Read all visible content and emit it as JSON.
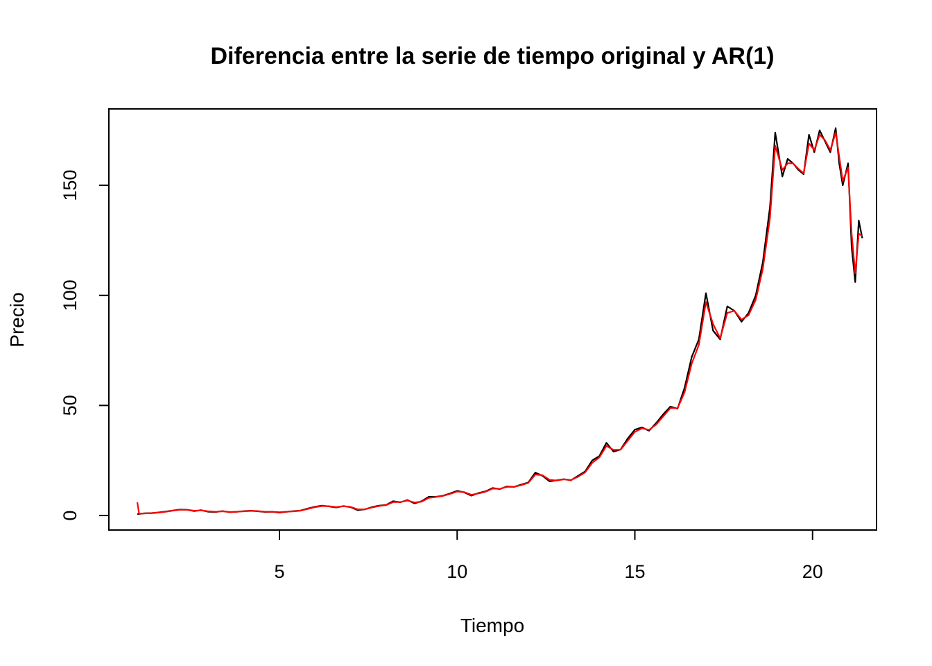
{
  "chart_data": {
    "type": "line",
    "title": "Diferencia entre la serie de tiempo original y AR(1)",
    "xlabel": "Tiempo",
    "ylabel": "Precio",
    "xlim": [
      0.2,
      21.8
    ],
    "ylim": [
      -6.6,
      184.7
    ],
    "x_ticks": [
      5,
      10,
      15,
      20
    ],
    "y_ticks": [
      0,
      50,
      100,
      150
    ],
    "grid": false,
    "legend": "none",
    "series": [
      {
        "color": "#000000",
        "points": [
          [
            1.0,
            0.6
          ],
          [
            1.2,
            1.0
          ],
          [
            1.4,
            1.1
          ],
          [
            1.6,
            1.4
          ],
          [
            1.8,
            1.8
          ],
          [
            2.0,
            2.3
          ],
          [
            2.2,
            2.7
          ],
          [
            2.4,
            2.6
          ],
          [
            2.6,
            2.0
          ],
          [
            2.8,
            2.4
          ],
          [
            3.0,
            1.7
          ],
          [
            3.2,
            1.6
          ],
          [
            3.4,
            2.0
          ],
          [
            3.6,
            1.5
          ],
          [
            3.8,
            1.7
          ],
          [
            4.0,
            2.0
          ],
          [
            4.2,
            2.2
          ],
          [
            4.4,
            1.9
          ],
          [
            4.6,
            1.6
          ],
          [
            4.8,
            1.7
          ],
          [
            5.0,
            1.3
          ],
          [
            5.2,
            1.7
          ],
          [
            5.4,
            2.0
          ],
          [
            5.6,
            2.3
          ],
          [
            5.8,
            3.2
          ],
          [
            6.0,
            4.0
          ],
          [
            6.2,
            4.5
          ],
          [
            6.4,
            4.1
          ],
          [
            6.6,
            3.6
          ],
          [
            6.8,
            4.3
          ],
          [
            7.0,
            3.8
          ],
          [
            7.2,
            2.4
          ],
          [
            7.4,
            2.8
          ],
          [
            7.6,
            3.8
          ],
          [
            7.8,
            4.5
          ],
          [
            8.0,
            4.8
          ],
          [
            8.2,
            6.5
          ],
          [
            8.4,
            6.0
          ],
          [
            8.6,
            7.0
          ],
          [
            8.8,
            5.5
          ],
          [
            9.0,
            6.5
          ],
          [
            9.2,
            8.5
          ],
          [
            9.4,
            8.5
          ],
          [
            9.6,
            9.0
          ],
          [
            9.8,
            10.0
          ],
          [
            10.0,
            11.2
          ],
          [
            10.2,
            10.5
          ],
          [
            10.4,
            9.0
          ],
          [
            10.6,
            10.2
          ],
          [
            10.8,
            11.0
          ],
          [
            11.0,
            12.5
          ],
          [
            11.2,
            12.0
          ],
          [
            11.4,
            13.2
          ],
          [
            11.6,
            13.0
          ],
          [
            11.8,
            14.0
          ],
          [
            12.0,
            15.0
          ],
          [
            12.2,
            19.5
          ],
          [
            12.4,
            18.0
          ],
          [
            12.6,
            15.5
          ],
          [
            12.8,
            16.0
          ],
          [
            13.0,
            16.5
          ],
          [
            13.2,
            16.0
          ],
          [
            13.4,
            18.0
          ],
          [
            13.6,
            20.0
          ],
          [
            13.8,
            25.0
          ],
          [
            14.0,
            27.0
          ],
          [
            14.2,
            33.0
          ],
          [
            14.4,
            29.0
          ],
          [
            14.6,
            30.0
          ],
          [
            14.8,
            35.0
          ],
          [
            15.0,
            39.0
          ],
          [
            15.2,
            40.0
          ],
          [
            15.4,
            38.5
          ],
          [
            15.6,
            42.0
          ],
          [
            15.8,
            46.0
          ],
          [
            16.0,
            49.5
          ],
          [
            16.2,
            48.5
          ],
          [
            16.4,
            58.0
          ],
          [
            16.6,
            72.0
          ],
          [
            16.8,
            80.0
          ],
          [
            17.0,
            101.0
          ],
          [
            17.2,
            84.0
          ],
          [
            17.4,
            80.0
          ],
          [
            17.6,
            95.0
          ],
          [
            17.8,
            93.0
          ],
          [
            18.0,
            88.0
          ],
          [
            18.2,
            92.0
          ],
          [
            18.4,
            100.0
          ],
          [
            18.6,
            115.0
          ],
          [
            18.8,
            140.0
          ],
          [
            18.95,
            174.0
          ],
          [
            19.15,
            154.0
          ],
          [
            19.3,
            162.0
          ],
          [
            19.45,
            160.0
          ],
          [
            19.6,
            157.0
          ],
          [
            19.75,
            155.0
          ],
          [
            19.9,
            173.0
          ],
          [
            20.05,
            165.0
          ],
          [
            20.2,
            175.0
          ],
          [
            20.35,
            170.0
          ],
          [
            20.5,
            165.0
          ],
          [
            20.65,
            176.0
          ],
          [
            20.75,
            160.0
          ],
          [
            20.85,
            150.0
          ],
          [
            21.0,
            160.0
          ],
          [
            21.1,
            122.0
          ],
          [
            21.2,
            106.0
          ],
          [
            21.3,
            134.0
          ],
          [
            21.4,
            126.0
          ]
        ]
      },
      {
        "color": "#ff0000",
        "points": [
          [
            1.0,
            6.0
          ],
          [
            1.05,
            0.8
          ],
          [
            1.2,
            0.9
          ],
          [
            1.4,
            1.1
          ],
          [
            1.6,
            1.3
          ],
          [
            1.8,
            1.7
          ],
          [
            2.0,
            2.2
          ],
          [
            2.2,
            2.6
          ],
          [
            2.4,
            2.6
          ],
          [
            2.6,
            2.2
          ],
          [
            2.8,
            2.3
          ],
          [
            3.0,
            1.9
          ],
          [
            3.2,
            1.7
          ],
          [
            3.4,
            1.9
          ],
          [
            3.6,
            1.6
          ],
          [
            3.8,
            1.7
          ],
          [
            4.0,
            1.9
          ],
          [
            4.2,
            2.1
          ],
          [
            4.4,
            2.0
          ],
          [
            4.6,
            1.7
          ],
          [
            4.8,
            1.7
          ],
          [
            5.0,
            1.5
          ],
          [
            5.2,
            1.7
          ],
          [
            5.4,
            1.9
          ],
          [
            5.6,
            2.2
          ],
          [
            5.8,
            3.0
          ],
          [
            6.0,
            3.8
          ],
          [
            6.2,
            4.3
          ],
          [
            6.4,
            4.2
          ],
          [
            6.6,
            3.8
          ],
          [
            6.8,
            4.2
          ],
          [
            7.0,
            3.9
          ],
          [
            7.2,
            2.8
          ],
          [
            7.4,
            2.8
          ],
          [
            7.6,
            3.6
          ],
          [
            7.8,
            4.3
          ],
          [
            8.0,
            4.7
          ],
          [
            8.2,
            6.1
          ],
          [
            8.4,
            6.1
          ],
          [
            8.6,
            6.8
          ],
          [
            8.8,
            5.9
          ],
          [
            9.0,
            6.3
          ],
          [
            9.2,
            8.0
          ],
          [
            9.4,
            8.4
          ],
          [
            9.6,
            8.9
          ],
          [
            9.8,
            9.8
          ],
          [
            10.0,
            10.9
          ],
          [
            10.2,
            10.6
          ],
          [
            10.4,
            9.4
          ],
          [
            10.6,
            10.0
          ],
          [
            10.8,
            10.8
          ],
          [
            11.0,
            12.2
          ],
          [
            11.2,
            12.1
          ],
          [
            11.4,
            13.0
          ],
          [
            11.6,
            13.0
          ],
          [
            11.8,
            13.8
          ],
          [
            12.0,
            14.8
          ],
          [
            12.2,
            18.6
          ],
          [
            12.4,
            18.3
          ],
          [
            12.6,
            16.2
          ],
          [
            12.8,
            15.9
          ],
          [
            13.0,
            16.4
          ],
          [
            13.2,
            16.1
          ],
          [
            13.4,
            17.6
          ],
          [
            13.6,
            19.6
          ],
          [
            13.8,
            23.9
          ],
          [
            14.0,
            26.4
          ],
          [
            14.2,
            31.6
          ],
          [
            14.4,
            29.8
          ],
          [
            14.6,
            29.9
          ],
          [
            14.8,
            34.0
          ],
          [
            15.0,
            38.0
          ],
          [
            15.2,
            39.6
          ],
          [
            15.4,
            38.9
          ],
          [
            15.6,
            41.3
          ],
          [
            15.8,
            45.1
          ],
          [
            16.0,
            48.8
          ],
          [
            16.2,
            48.7
          ],
          [
            16.4,
            56.0
          ],
          [
            16.6,
            69.0
          ],
          [
            16.8,
            77.5
          ],
          [
            17.0,
            97.0
          ],
          [
            17.2,
            87.0
          ],
          [
            17.4,
            80.5
          ],
          [
            17.6,
            92.0
          ],
          [
            17.8,
            93.0
          ],
          [
            18.0,
            89.0
          ],
          [
            18.2,
            91.0
          ],
          [
            18.4,
            98.0
          ],
          [
            18.6,
            112.0
          ],
          [
            18.8,
            135.0
          ],
          [
            18.95,
            168.0
          ],
          [
            19.15,
            157.0
          ],
          [
            19.3,
            160.0
          ],
          [
            19.45,
            160.0
          ],
          [
            19.6,
            157.5
          ],
          [
            19.75,
            155.5
          ],
          [
            19.9,
            169.0
          ],
          [
            20.05,
            166.0
          ],
          [
            20.2,
            173.0
          ],
          [
            20.35,
            170.5
          ],
          [
            20.5,
            166.0
          ],
          [
            20.65,
            174.0
          ],
          [
            20.75,
            163.0
          ],
          [
            20.85,
            152.0
          ],
          [
            21.0,
            158.0
          ],
          [
            21.1,
            128.0
          ],
          [
            21.2,
            110.0
          ],
          [
            21.3,
            128.0
          ],
          [
            21.4,
            127.0
          ]
        ]
      }
    ]
  }
}
